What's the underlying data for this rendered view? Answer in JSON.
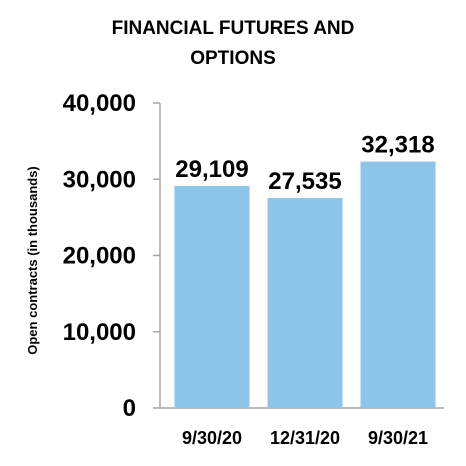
{
  "chart_data": {
    "type": "bar",
    "title_lines": [
      "FINANCIAL FUTURES AND",
      "OPTIONS"
    ],
    "ylabel": "Open contracts (in thousands)",
    "xlabel": "",
    "categories": [
      "9/30/20",
      "12/31/20",
      "9/30/21"
    ],
    "values": [
      29109,
      27535,
      32318
    ],
    "data_labels": [
      "29,109",
      "27,535",
      "32,318"
    ],
    "ylim": [
      0,
      40000
    ],
    "yticks": [
      0,
      10000,
      20000,
      30000,
      40000
    ],
    "ytick_labels": [
      "0",
      "10,000",
      "20,000",
      "30,000",
      "40,000"
    ],
    "grid": false,
    "legend": "none",
    "colors": {
      "bar": "#8ec6ea",
      "axis": "#a6a6a6",
      "text": "#000000",
      "background": "#ffffff"
    }
  }
}
